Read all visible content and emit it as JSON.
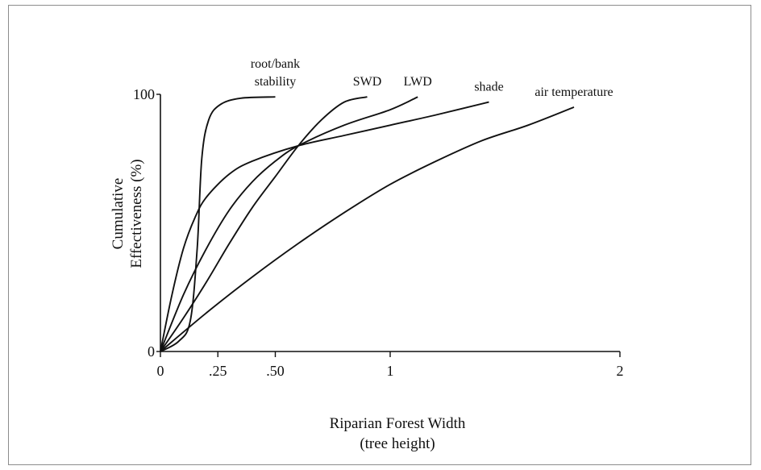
{
  "chart_data": {
    "type": "line",
    "title": "",
    "xlabel": "Riparian Forest Width",
    "xlabel_sub": "(tree height)",
    "ylabel": "Cumulative",
    "ylabel_sub": "Effectiveness (%)",
    "xlim": [
      0,
      2
    ],
    "ylim": [
      0,
      100
    ],
    "x_ticks": [
      {
        "value": 0,
        "label": "0"
      },
      {
        "value": 0.25,
        "label": ".25"
      },
      {
        "value": 0.5,
        "label": ".50"
      },
      {
        "value": 1,
        "label": "1"
      },
      {
        "value": 2,
        "label": "2"
      }
    ],
    "y_ticks": [
      {
        "value": 0,
        "label": "0"
      },
      {
        "value": 100,
        "label": "100"
      }
    ],
    "grid": false,
    "legend": "none",
    "series": [
      {
        "name": "root/bank stability",
        "label_lines": [
          "root/bank",
          "stability"
        ],
        "points": [
          [
            0,
            0
          ],
          [
            0.08,
            4
          ],
          [
            0.13,
            12
          ],
          [
            0.16,
            40
          ],
          [
            0.18,
            75
          ],
          [
            0.21,
            90
          ],
          [
            0.26,
            96
          ],
          [
            0.35,
            98.5
          ],
          [
            0.5,
            99
          ]
        ]
      },
      {
        "name": "SWD",
        "label_lines": [
          "SWD"
        ],
        "points": [
          [
            0,
            0
          ],
          [
            0.1,
            13
          ],
          [
            0.2,
            27
          ],
          [
            0.3,
            42
          ],
          [
            0.4,
            56
          ],
          [
            0.5,
            68
          ],
          [
            0.6,
            80
          ],
          [
            0.7,
            90
          ],
          [
            0.8,
            97
          ],
          [
            0.9,
            99
          ]
        ]
      },
      {
        "name": "LWD",
        "label_lines": [
          "LWD"
        ],
        "points": [
          [
            0,
            0
          ],
          [
            0.1,
            22
          ],
          [
            0.2,
            40
          ],
          [
            0.3,
            55
          ],
          [
            0.4,
            66
          ],
          [
            0.5,
            74
          ],
          [
            0.6,
            80
          ],
          [
            0.8,
            88
          ],
          [
            1.0,
            94
          ],
          [
            1.12,
            99
          ]
        ]
      },
      {
        "name": "shade",
        "label_lines": [
          "shade"
        ],
        "points": [
          [
            0,
            0
          ],
          [
            0.05,
            22
          ],
          [
            0.1,
            40
          ],
          [
            0.15,
            52
          ],
          [
            0.2,
            60
          ],
          [
            0.3,
            69
          ],
          [
            0.4,
            74
          ],
          [
            0.6,
            80
          ],
          [
            0.8,
            84
          ],
          [
            1.0,
            88
          ],
          [
            1.2,
            92
          ],
          [
            1.43,
            97
          ]
        ]
      },
      {
        "name": "air temperature",
        "label_lines": [
          "air temperature"
        ],
        "points": [
          [
            0,
            0
          ],
          [
            0.2,
            15
          ],
          [
            0.4,
            29
          ],
          [
            0.6,
            42
          ],
          [
            0.8,
            54
          ],
          [
            1.0,
            65
          ],
          [
            1.2,
            74
          ],
          [
            1.4,
            82
          ],
          [
            1.6,
            88
          ],
          [
            1.8,
            95
          ]
        ]
      }
    ]
  }
}
